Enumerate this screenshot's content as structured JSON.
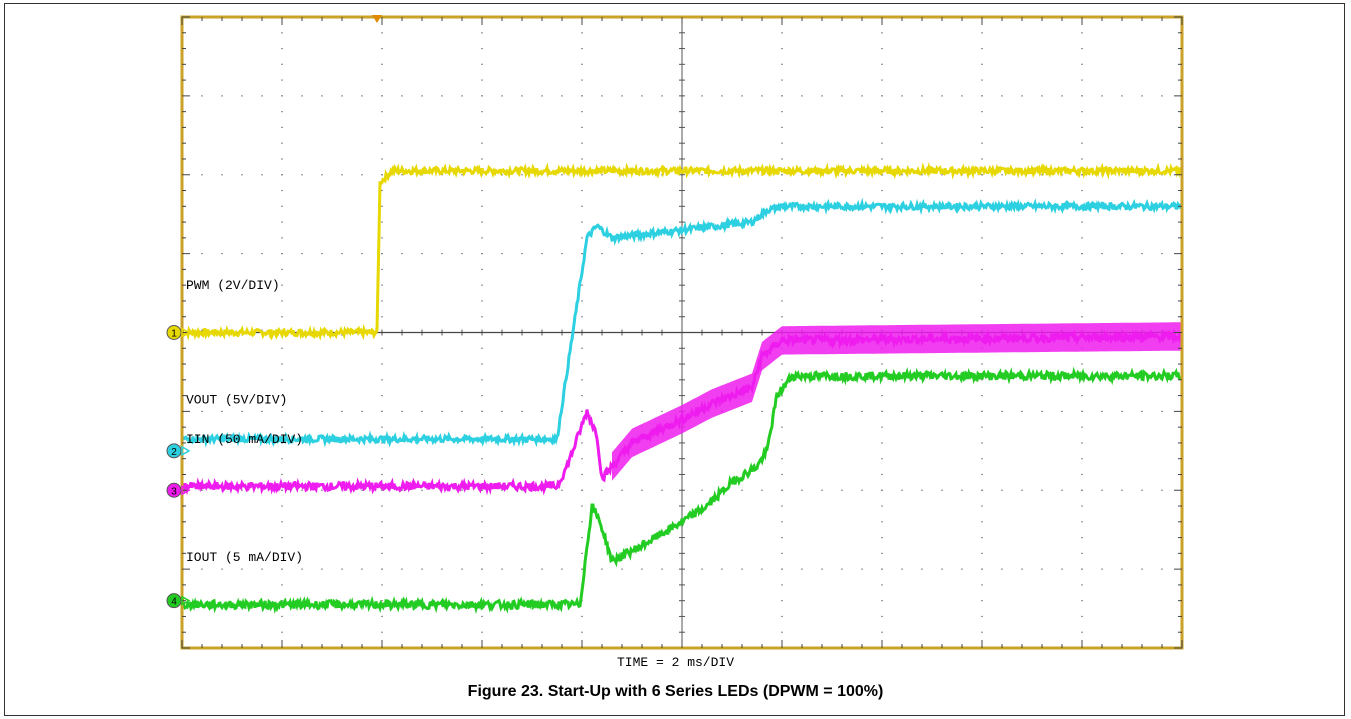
{
  "chart_data": {
    "type": "line",
    "title": "Figure 23. Start-Up with 6 Series LEDs (DPWM = 100%)",
    "xlabel": "TIME = 2 ms/DIV",
    "ylabel": "",
    "divisions": {
      "x": 10,
      "y": 8
    },
    "grid": true,
    "colors": {
      "frame": "#c9a227",
      "background": "#ffffff",
      "grid": "#555555"
    },
    "series": [
      {
        "name": "PWM (2V/DIV)",
        "channel": "1",
        "color": "#e6d800",
        "noise": 0.04,
        "marker_div": 4.0,
        "points": [
          [
            0,
            4.0
          ],
          [
            1.95,
            4.0
          ],
          [
            1.98,
            5.9
          ],
          [
            2.1,
            6.05
          ],
          [
            10,
            6.05
          ]
        ]
      },
      {
        "name": "VOUT (5V/DIV)",
        "channel": "2",
        "color": "#2cd0e0",
        "noise": 0.04,
        "marker_div": 2.5,
        "points": [
          [
            0,
            2.65
          ],
          [
            3.75,
            2.65
          ],
          [
            4.05,
            5.2
          ],
          [
            4.15,
            5.35
          ],
          [
            4.3,
            5.2
          ],
          [
            5.7,
            5.4
          ],
          [
            5.85,
            5.55
          ],
          [
            6.0,
            5.6
          ],
          [
            10,
            5.6
          ]
        ]
      },
      {
        "name": "IIN (50 mA/DIV)",
        "channel": "3",
        "color": "#ee1cee",
        "noise": 0.05,
        "marker_div": 2.0,
        "points": [
          [
            0,
            2.05
          ],
          [
            3.75,
            2.05
          ],
          [
            3.85,
            2.3
          ],
          [
            4.05,
            3.0
          ],
          [
            4.15,
            2.7
          ],
          [
            4.2,
            2.15
          ],
          [
            4.5,
            2.6
          ],
          [
            5.0,
            2.9
          ],
          [
            5.3,
            3.1
          ],
          [
            5.7,
            3.3
          ],
          [
            5.8,
            3.7
          ],
          [
            6.0,
            3.9
          ],
          [
            10,
            3.95
          ]
        ],
        "band_start": 4.3,
        "band_end": 10,
        "band_width": 0.18
      },
      {
        "name": "IOUT (5 mA/DIV)",
        "channel": "4",
        "color": "#22cc22",
        "noise": 0.05,
        "marker_div": 0.6,
        "points": [
          [
            0,
            0.55
          ],
          [
            3.98,
            0.55
          ],
          [
            4.1,
            1.8
          ],
          [
            4.18,
            1.6
          ],
          [
            4.3,
            1.1
          ],
          [
            4.6,
            1.3
          ],
          [
            5.0,
            1.6
          ],
          [
            5.25,
            1.8
          ],
          [
            5.5,
            2.1
          ],
          [
            5.75,
            2.3
          ],
          [
            5.85,
            2.5
          ],
          [
            5.95,
            3.2
          ],
          [
            6.1,
            3.45
          ],
          [
            10,
            3.45
          ]
        ]
      }
    ]
  }
}
